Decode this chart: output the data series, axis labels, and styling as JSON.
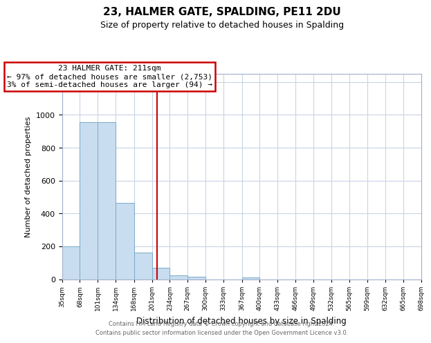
{
  "title": "23, HALMER GATE, SPALDING, PE11 2DU",
  "subtitle": "Size of property relative to detached houses in Spalding",
  "xlabel": "Distribution of detached houses by size in Spalding",
  "ylabel": "Number of detached properties",
  "bin_edges": [
    35,
    68,
    101,
    134,
    168,
    201,
    234,
    267,
    300,
    333,
    367,
    400,
    433,
    466,
    499,
    532,
    565,
    599,
    632,
    665,
    698
  ],
  "bar_heights": [
    200,
    955,
    955,
    465,
    160,
    70,
    25,
    15,
    0,
    0,
    10,
    0,
    0,
    0,
    0,
    0,
    0,
    0,
    0,
    0
  ],
  "bar_color": "#c8ddef",
  "bar_edge_color": "#7aaac8",
  "property_line_x": 211,
  "property_line_color": "#cc0000",
  "annotation_text": "23 HALMER GATE: 211sqm\n← 97% of detached houses are smaller (2,753)\n3% of semi-detached houses are larger (94) →",
  "annotation_box_color": "#ffffff",
  "annotation_box_edge": "#cc0000",
  "ylim": [
    0,
    1250
  ],
  "yticks": [
    0,
    200,
    400,
    600,
    800,
    1000,
    1200
  ],
  "tick_labels": [
    "35sqm",
    "68sqm",
    "101sqm",
    "134sqm",
    "168sqm",
    "201sqm",
    "234sqm",
    "267sqm",
    "300sqm",
    "333sqm",
    "367sqm",
    "400sqm",
    "433sqm",
    "466sqm",
    "499sqm",
    "532sqm",
    "565sqm",
    "599sqm",
    "632sqm",
    "665sqm",
    "698sqm"
  ],
  "footer_text": "Contains HM Land Registry data © Crown copyright and database right 2024.\nContains public sector information licensed under the Open Government Licence v3.0.",
  "background_color": "#ffffff",
  "grid_color": "#c8d4e4"
}
